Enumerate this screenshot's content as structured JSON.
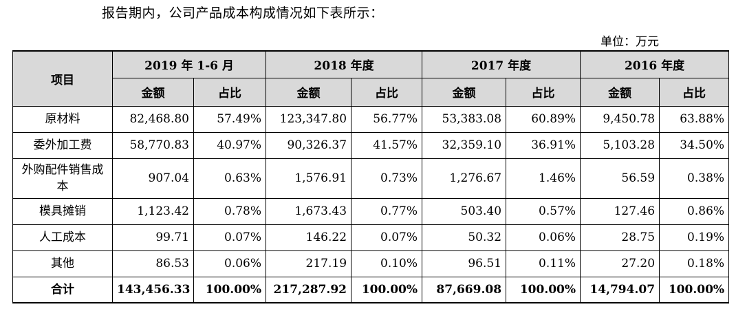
{
  "intro": "报告期内，公司产品成本构成情况如下表所示：",
  "unit_label": "单位：万元",
  "table": {
    "item_header": "项目",
    "periods": [
      "2019 年 1-6 月",
      "2018 年度",
      "2017 年度",
      "2016 年度"
    ],
    "sub_amount": "金额",
    "sub_ratio": "占比",
    "rows": [
      {
        "item": "原材料",
        "cells": [
          "82,468.80",
          "57.49%",
          "123,347.80",
          "56.77%",
          "53,383.08",
          "60.89%",
          "9,450.78",
          "63.88%"
        ]
      },
      {
        "item": "委外加工费",
        "cells": [
          "58,770.83",
          "40.97%",
          "90,326.37",
          "41.57%",
          "32,359.10",
          "36.91%",
          "5,103.28",
          "34.50%"
        ]
      },
      {
        "item": "外购配件销售成本",
        "cells": [
          "907.04",
          "0.63%",
          "1,576.91",
          "0.73%",
          "1,276.67",
          "1.46%",
          "56.59",
          "0.38%"
        ]
      },
      {
        "item": "模具摊销",
        "cells": [
          "1,123.42",
          "0.78%",
          "1,673.43",
          "0.77%",
          "503.40",
          "0.57%",
          "127.46",
          "0.86%"
        ]
      },
      {
        "item": "人工成本",
        "cells": [
          "99.71",
          "0.07%",
          "146.22",
          "0.07%",
          "50.32",
          "0.06%",
          "28.75",
          "0.19%"
        ]
      },
      {
        "item": "其他",
        "cells": [
          "86.53",
          "0.06%",
          "217.19",
          "0.10%",
          "96.51",
          "0.11%",
          "27.20",
          "0.18%"
        ]
      }
    ],
    "total": {
      "item": "合计",
      "cells": [
        "143,456.33",
        "100.00%",
        "217,287.92",
        "100.00%",
        "87,669.08",
        "100.00%",
        "14,794.07",
        "100.00%"
      ]
    }
  }
}
